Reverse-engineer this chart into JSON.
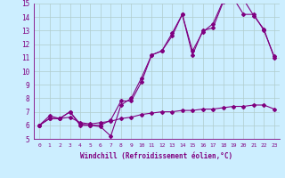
{
  "xlabel": "Windchill (Refroidissement éolien,°C)",
  "line_color": "#800080",
  "bg_color": "#cceeff",
  "grid_color": "#b0cccc",
  "xlim": [
    -0.5,
    23.5
  ],
  "ylim": [
    5,
    15
  ],
  "xticks": [
    0,
    1,
    2,
    3,
    4,
    5,
    6,
    7,
    8,
    9,
    10,
    11,
    12,
    13,
    14,
    15,
    16,
    17,
    18,
    19,
    20,
    21,
    22,
    23
  ],
  "yticks": [
    5,
    6,
    7,
    8,
    9,
    10,
    11,
    12,
    13,
    14,
    15
  ],
  "line1_x": [
    0,
    1,
    2,
    3,
    4,
    5,
    6,
    7,
    8,
    9,
    10,
    11,
    12,
    13,
    14,
    15,
    16,
    17,
    18,
    19,
    20,
    21,
    22,
    23
  ],
  "line1_y": [
    6.0,
    6.7,
    6.5,
    7.0,
    6.0,
    6.0,
    5.9,
    5.2,
    7.5,
    8.0,
    9.5,
    11.2,
    11.5,
    12.6,
    14.2,
    11.2,
    13.0,
    13.2,
    15.1,
    15.4,
    15.3,
    14.1,
    13.1,
    11.0
  ],
  "line2_x": [
    0,
    1,
    2,
    3,
    4,
    5,
    6,
    7,
    8,
    9,
    10,
    11,
    12,
    13,
    14,
    15,
    16,
    17,
    18,
    19,
    20,
    21,
    22,
    23
  ],
  "line2_y": [
    6.0,
    6.5,
    6.5,
    7.0,
    6.1,
    6.0,
    6.0,
    6.4,
    7.8,
    7.8,
    9.2,
    11.2,
    11.5,
    12.8,
    14.2,
    11.5,
    12.9,
    13.5,
    15.2,
    15.4,
    14.2,
    14.2,
    13.0,
    11.1
  ],
  "line3_x": [
    0,
    1,
    2,
    3,
    4,
    5,
    6,
    7,
    8,
    9,
    10,
    11,
    12,
    13,
    14,
    15,
    16,
    17,
    18,
    19,
    20,
    21,
    22,
    23
  ],
  "line3_y": [
    6.0,
    6.5,
    6.5,
    6.6,
    6.2,
    6.1,
    6.2,
    6.3,
    6.5,
    6.6,
    6.8,
    6.9,
    7.0,
    7.0,
    7.1,
    7.1,
    7.2,
    7.2,
    7.3,
    7.4,
    7.4,
    7.5,
    7.5,
    7.2
  ],
  "xlabel_fontsize": 5.5,
  "tick_fontsize_x": 4.5,
  "tick_fontsize_y": 5.5,
  "marker_size": 2.0,
  "line_width": 0.8
}
